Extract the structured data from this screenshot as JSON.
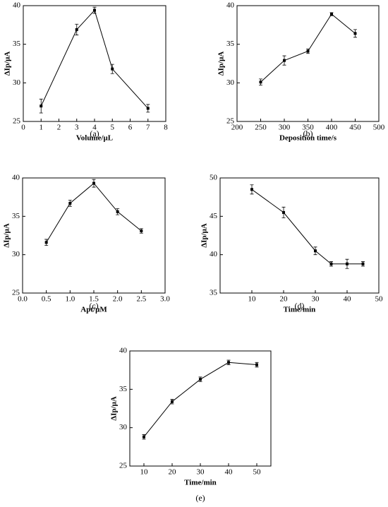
{
  "chart_data": [
    {
      "type": "line",
      "caption": "(a)",
      "xlabel": "Volume/μL",
      "ylabel": "ΔIp/μA",
      "x": [
        1,
        3,
        4,
        5,
        7
      ],
      "values": [
        27.0,
        36.9,
        39.4,
        31.8,
        26.7
      ],
      "errors": [
        0.9,
        0.7,
        0.4,
        0.6,
        0.5
      ],
      "xlim": [
        0,
        8
      ],
      "xticks": [
        0,
        1,
        2,
        3,
        4,
        5,
        6,
        7,
        8
      ],
      "ylim": [
        25,
        40
      ],
      "yticks": [
        25,
        30,
        35,
        40
      ],
      "color": "#000000"
    },
    {
      "type": "line",
      "caption": "(b)",
      "xlabel": "Deposition time/s",
      "ylabel": "ΔIp/μA",
      "x": [
        250,
        300,
        350,
        400,
        450
      ],
      "values": [
        30.1,
        32.9,
        34.1,
        38.9,
        36.4
      ],
      "errors": [
        0.4,
        0.6,
        0.3,
        0.2,
        0.5
      ],
      "xlim": [
        200,
        500
      ],
      "xticks": [
        200,
        250,
        300,
        350,
        400,
        450,
        500
      ],
      "ylim": [
        25,
        40
      ],
      "yticks": [
        25,
        30,
        35,
        40
      ],
      "color": "#000000"
    },
    {
      "type": "line",
      "caption": "(c)",
      "xlabel": "Apt/μM",
      "ylabel": "ΔIp/μA",
      "x": [
        0.5,
        1.0,
        1.5,
        2.0,
        2.5
      ],
      "values": [
        31.6,
        36.7,
        39.3,
        35.6,
        33.1
      ],
      "errors": [
        0.4,
        0.4,
        0.5,
        0.4,
        0.3
      ],
      "xlim": [
        0,
        3
      ],
      "xticks": [
        {
          "value": 0,
          "label": "0.0"
        },
        0.5,
        {
          "value": 1,
          "label": "1.0"
        },
        1.5,
        {
          "value": 2,
          "label": "2.0"
        },
        2.5,
        {
          "value": 3,
          "label": "3.0"
        }
      ],
      "ylim": [
        25,
        40
      ],
      "yticks": [
        25,
        30,
        35,
        40
      ],
      "color": "#000000"
    },
    {
      "type": "line",
      "caption": "(d)",
      "xlabel": "Time/min",
      "ylabel": "ΔIp/μA",
      "x": [
        10,
        20,
        30,
        35,
        40,
        45
      ],
      "values": [
        48.5,
        45.5,
        40.5,
        38.8,
        38.8,
        38.8
      ],
      "errors": [
        0.6,
        0.7,
        0.5,
        0.3,
        0.6,
        0.3
      ],
      "xlim": [
        0,
        50
      ],
      "xticks": [
        10,
        20,
        30,
        40,
        50
      ],
      "ylim": [
        35,
        50
      ],
      "yticks": [
        35,
        40,
        45,
        50
      ],
      "color": "#000000"
    },
    {
      "type": "line",
      "caption": "(e)",
      "xlabel": "Time/min",
      "ylabel": "ΔIp/μA",
      "x": [
        10,
        20,
        30,
        40,
        50
      ],
      "values": [
        28.8,
        33.4,
        36.3,
        38.5,
        38.2
      ],
      "errors": [
        0.3,
        0.3,
        0.3,
        0.3,
        0.3
      ],
      "xlim": [
        5,
        55
      ],
      "xticks": [
        10,
        20,
        30,
        40,
        50
      ],
      "ylim": [
        25,
        40
      ],
      "yticks": [
        25,
        30,
        35,
        40
      ],
      "color": "#000000"
    }
  ]
}
